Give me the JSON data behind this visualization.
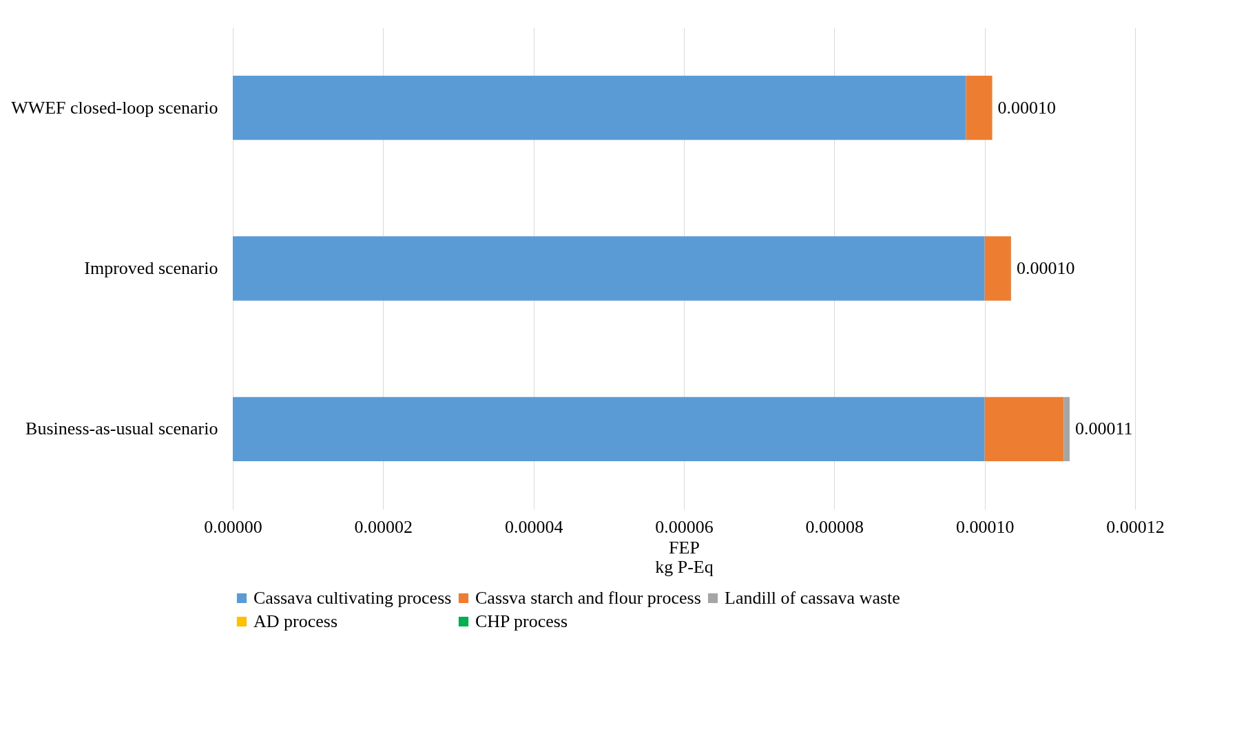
{
  "chart_data": {
    "type": "bar",
    "orientation": "horizontal",
    "stacked": true,
    "xlabel": "FEP\nkg P-Eq",
    "categories": [
      "WWEF closed-loop scenario",
      "Improved scenario",
      "Business-as-usual scenario"
    ],
    "series": [
      {
        "name": "Cassava cultivating process",
        "color": "#5b9bd5",
        "values": [
          9.75e-05,
          0.0001,
          0.0001
        ]
      },
      {
        "name": "Cassva starch and flour process",
        "color": "#ed7d31",
        "values": [
          3.5e-06,
          3.5e-06,
          1.05e-05
        ]
      },
      {
        "name": "Landill of cassava waste",
        "color": "#a5a5a5",
        "values": [
          0,
          0,
          8e-07
        ]
      },
      {
        "name": "AD process",
        "color": "#ffc000",
        "values": [
          0,
          0,
          0
        ]
      },
      {
        "name": "CHP process",
        "color": "#00b050",
        "values": [
          0,
          0,
          0
        ]
      }
    ],
    "totals": [
      "0.00010",
      "0.00010",
      "0.00011"
    ],
    "xlim": [
      0,
      0.00012
    ],
    "xticks": [
      {
        "value": 0,
        "label": "0.00000"
      },
      {
        "value": 2e-05,
        "label": "0.00002"
      },
      {
        "value": 4e-05,
        "label": "0.00004"
      },
      {
        "value": 6e-05,
        "label": "0.00006"
      },
      {
        "value": 8e-05,
        "label": "0.00008"
      },
      {
        "value": 0.0001,
        "label": "0.00010"
      },
      {
        "value": 0.00012,
        "label": "0.00012"
      }
    ],
    "grid": "x",
    "legend": "bottom"
  }
}
